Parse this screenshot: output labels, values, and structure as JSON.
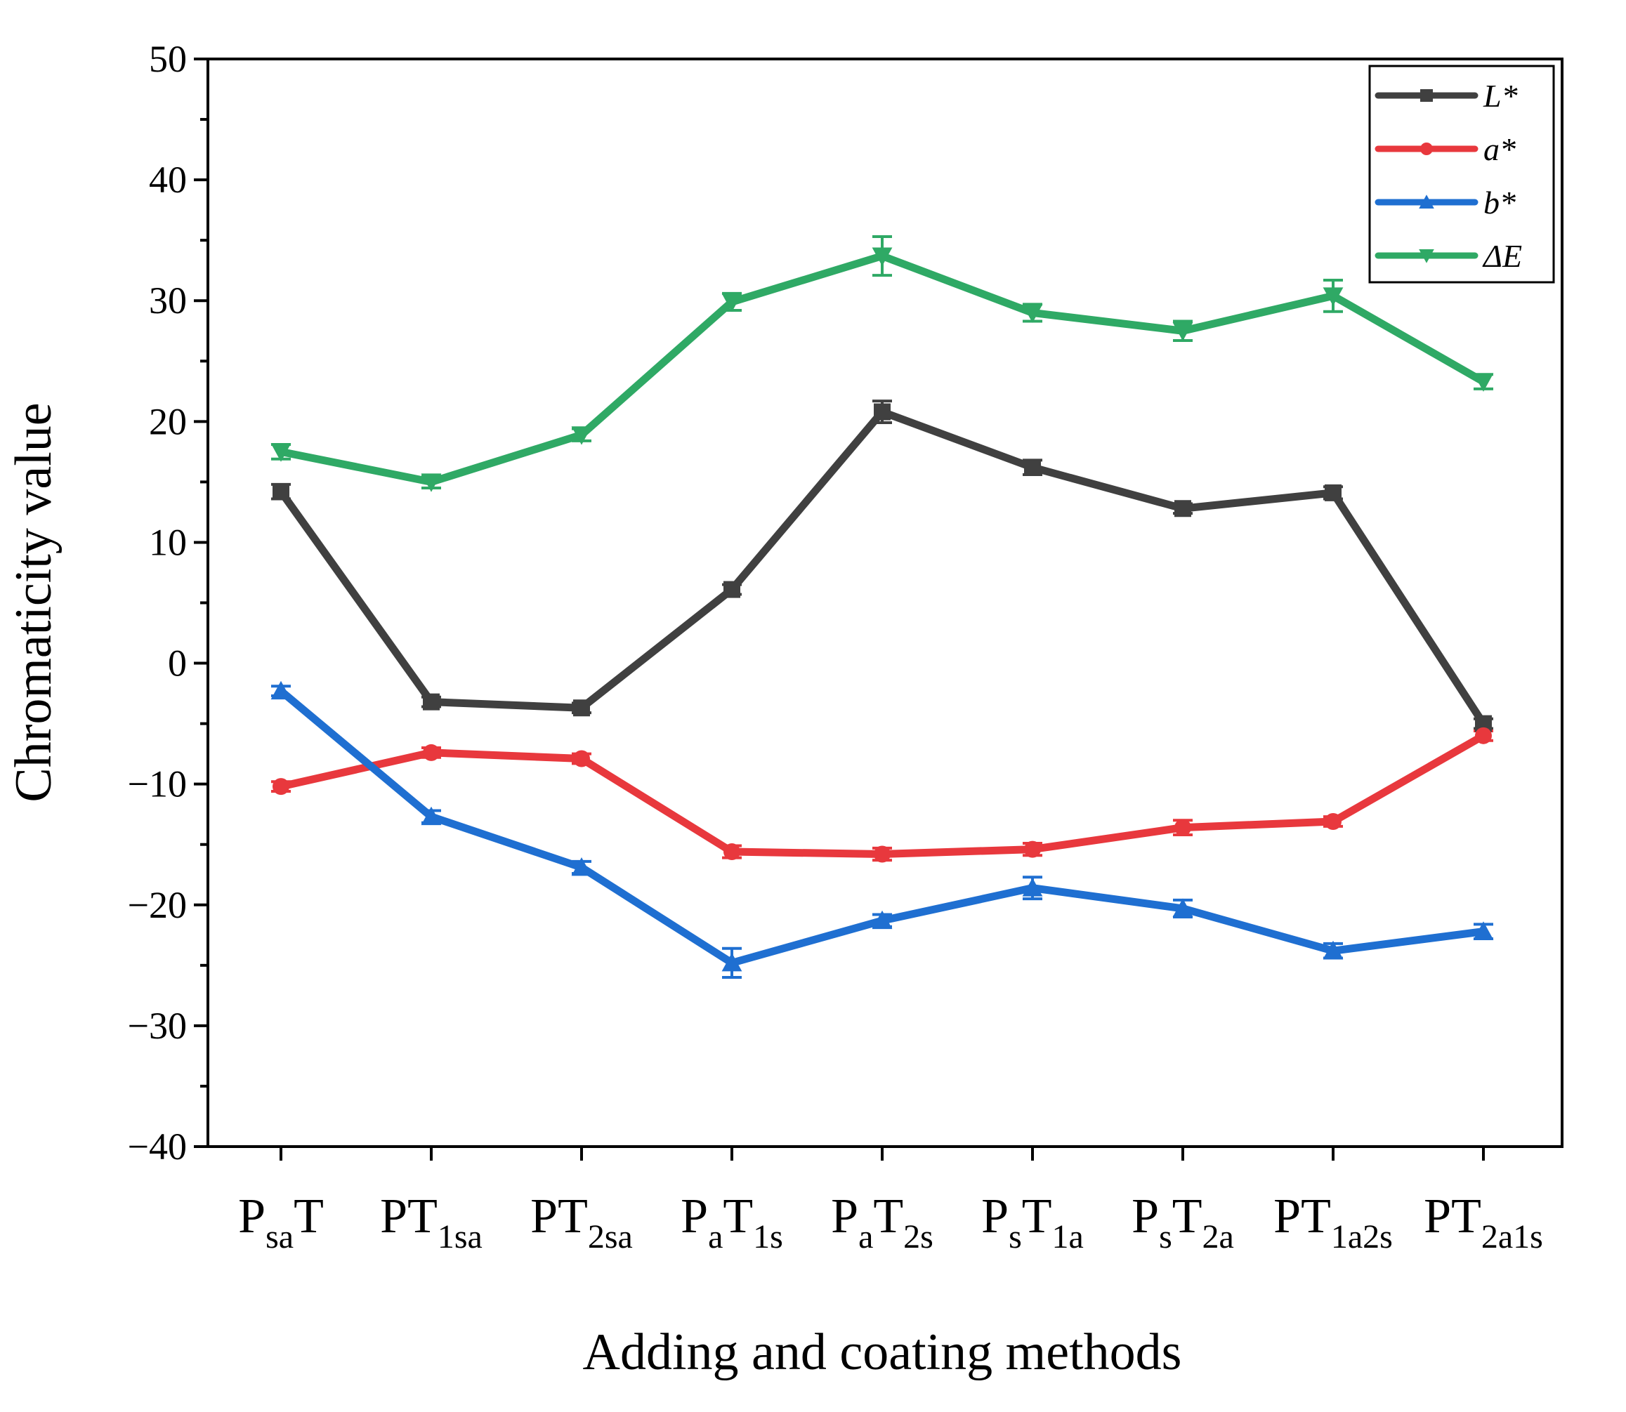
{
  "chart_data": {
    "type": "line",
    "title": "",
    "xlabel": "Adding and coating methods",
    "ylabel": "Chromaticity value",
    "ylim": [
      -40,
      50
    ],
    "yticks": [
      -40,
      -30,
      -20,
      -10,
      0,
      10,
      20,
      30,
      40,
      50
    ],
    "ytick_labels": [
      "−40",
      "−30",
      "−20",
      "−10",
      "0",
      "10",
      "20",
      "30",
      "40",
      "50"
    ],
    "grid": false,
    "legend_position": "top-right",
    "categories": [
      {
        "main": "P",
        "sub": "sa",
        "post": "T",
        "post_sub": ""
      },
      {
        "main": "PT",
        "sub": "1sa",
        "post": "",
        "post_sub": ""
      },
      {
        "main": "PT",
        "sub": "2sa",
        "post": "",
        "post_sub": ""
      },
      {
        "main": "P",
        "sub": "a",
        "post": "T",
        "post_sub": "1s"
      },
      {
        "main": "P",
        "sub": "a",
        "post": "T",
        "post_sub": "2s"
      },
      {
        "main": "P",
        "sub": "s",
        "post": "T",
        "post_sub": "1a"
      },
      {
        "main": "P",
        "sub": "s",
        "post": "T",
        "post_sub": "2a"
      },
      {
        "main": "PT",
        "sub": "1a2s",
        "post": "",
        "post_sub": ""
      },
      {
        "main": "PT",
        "sub": "2a1s",
        "post": "",
        "post_sub": ""
      }
    ],
    "series": [
      {
        "name": "L*",
        "legend_label": "L*",
        "color": "#404040",
        "marker": "square",
        "values": [
          14.2,
          -3.2,
          -3.7,
          6.1,
          20.8,
          16.2,
          12.8,
          14.1,
          -5.0
        ],
        "errors": [
          0.6,
          0.4,
          0.4,
          0.4,
          0.9,
          0.6,
          0.4,
          0.5,
          0.4
        ]
      },
      {
        "name": "a*",
        "legend_label": "a*",
        "color": "#e8383d",
        "marker": "circle",
        "values": [
          -10.2,
          -7.4,
          -7.9,
          -15.6,
          -15.8,
          -15.4,
          -13.6,
          -13.1,
          -6.0
        ],
        "errors": [
          0.4,
          0.4,
          0.4,
          0.5,
          0.5,
          0.5,
          0.6,
          0.4,
          0.4
        ]
      },
      {
        "name": "b*",
        "legend_label": "b*",
        "color": "#1f6fd1",
        "marker": "triangle-up",
        "values": [
          -2.3,
          -12.7,
          -16.9,
          -24.8,
          -21.3,
          -18.6,
          -20.3,
          -23.8,
          -22.2
        ],
        "errors": [
          0.4,
          0.5,
          0.5,
          1.2,
          0.5,
          0.9,
          0.7,
          0.6,
          0.6
        ]
      },
      {
        "name": "ΔE",
        "legend_label": "ΔE",
        "color": "#2fa965",
        "marker": "triangle-down",
        "values": [
          17.5,
          15.0,
          18.9,
          29.9,
          33.7,
          29.0,
          27.5,
          30.4,
          23.3
        ],
        "errors": [
          0.6,
          0.5,
          0.5,
          0.7,
          1.6,
          0.7,
          0.8,
          1.3,
          0.6
        ]
      }
    ]
  }
}
